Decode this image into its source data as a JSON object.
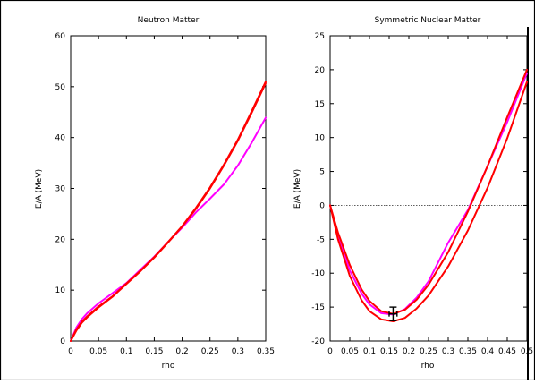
{
  "chart_data": [
    {
      "type": "line",
      "title": "Neutron Matter",
      "xlabel": "rho",
      "ylabel": "E/A (MeV)",
      "xlim": [
        0,
        0.35
      ],
      "ylim": [
        0,
        60
      ],
      "xticks": [
        "0",
        "0.05",
        "0.1",
        "0.15",
        "0.2",
        "0.25",
        "0.3",
        "0.35"
      ],
      "yticks": [
        "0",
        "10",
        "20",
        "30",
        "40",
        "50",
        "60"
      ],
      "grid": false,
      "series": [
        {
          "color": "#ff00ff",
          "x": [
            0,
            0.01,
            0.02,
            0.03,
            0.05,
            0.075,
            0.1,
            0.125,
            0.15,
            0.175,
            0.2,
            0.225,
            0.25,
            0.275,
            0.3,
            0.325,
            0.35
          ],
          "y": [
            0,
            2.6,
            4.3,
            5.5,
            7.4,
            9.4,
            11.4,
            14.0,
            16.6,
            19.5,
            22.3,
            25.3,
            28.0,
            30.8,
            34.5,
            39.0,
            43.9
          ]
        },
        {
          "color": "#ff0000",
          "x": [
            0,
            0.01,
            0.02,
            0.03,
            0.05,
            0.075,
            0.1,
            0.125,
            0.15,
            0.175,
            0.2,
            0.225,
            0.25,
            0.275,
            0.3,
            0.325,
            0.35
          ],
          "y": [
            0,
            2.2,
            3.8,
            4.9,
            6.8,
            8.8,
            11.3,
            13.8,
            16.5,
            19.5,
            22.6,
            26.2,
            30.2,
            34.7,
            39.6,
            45.2,
            51.0
          ]
        },
        {
          "color": "#ff0000",
          "x": [
            0,
            0.01,
            0.02,
            0.03,
            0.05,
            0.075,
            0.1,
            0.125,
            0.15,
            0.175,
            0.2,
            0.225,
            0.25,
            0.275,
            0.3,
            0.325,
            0.35
          ],
          "y": [
            0,
            2.0,
            3.6,
            4.7,
            6.6,
            8.7,
            11.2,
            13.7,
            16.4,
            19.4,
            22.5,
            26.0,
            30.0,
            34.5,
            39.4,
            44.9,
            50.7
          ]
        }
      ]
    },
    {
      "type": "line",
      "title": "Symmetric Nuclear Matter",
      "xlabel": "rho",
      "ylabel": "E/A (MeV)",
      "xlim": [
        0,
        0.5
      ],
      "ylim": [
        -20,
        25
      ],
      "xticks": [
        "0",
        "0.05",
        "0.1",
        "0.15",
        "0.2",
        "0.25",
        "0.3",
        "0.35",
        "0.4",
        "0.45",
        "0.5"
      ],
      "yticks": [
        "-20",
        "-15",
        "-10",
        "-5",
        "0",
        "5",
        "10",
        "15",
        "20",
        "25"
      ],
      "grid": false,
      "zero_line": true,
      "error_bar": {
        "x": 0.16,
        "y": -16,
        "xerr": 0.01,
        "yerr": 1
      },
      "series": [
        {
          "color": "#ff00ff",
          "x": [
            0,
            0.02,
            0.05,
            0.08,
            0.1,
            0.13,
            0.16,
            0.19,
            0.22,
            0.25,
            0.3,
            0.35,
            0.4,
            0.45,
            0.5
          ],
          "y": [
            0,
            -4.5,
            -9.6,
            -13.0,
            -14.6,
            -15.9,
            -16.1,
            -15.3,
            -13.6,
            -11.2,
            -5.5,
            -0.7,
            5.8,
            12.3,
            19.5
          ]
        },
        {
          "color": "#ff0000",
          "x": [
            0,
            0.02,
            0.05,
            0.08,
            0.1,
            0.13,
            0.16,
            0.19,
            0.22,
            0.25,
            0.3,
            0.35,
            0.4,
            0.45,
            0.5
          ],
          "y": [
            0,
            -4.0,
            -8.8,
            -12.4,
            -14.1,
            -15.6,
            -16.0,
            -15.4,
            -13.9,
            -11.7,
            -6.9,
            -0.9,
            5.8,
            13.0,
            20.0
          ]
        },
        {
          "color": "#ff0000",
          "x": [
            0,
            0.02,
            0.05,
            0.08,
            0.1,
            0.13,
            0.16,
            0.19,
            0.22,
            0.25,
            0.3,
            0.35,
            0.4,
            0.45,
            0.5
          ],
          "y": [
            0,
            -5.0,
            -10.4,
            -14.0,
            -15.6,
            -16.8,
            -17.1,
            -16.6,
            -15.2,
            -13.3,
            -9.0,
            -3.7,
            2.6,
            9.9,
            18.2
          ]
        }
      ]
    }
  ]
}
